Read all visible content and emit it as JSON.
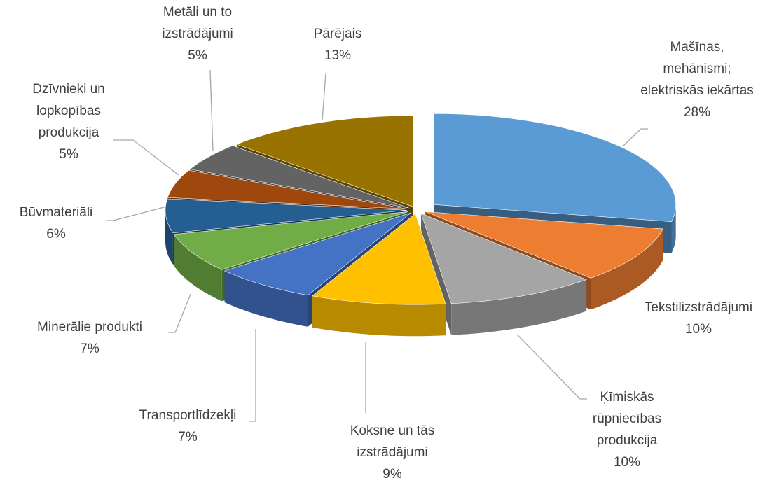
{
  "chart_data": {
    "type": "pie",
    "categories": [
      "Mašīnas,\nmehānismi;\nelektriskās iekārtas",
      "Tekstilizstrādājumi",
      "Ķīmiskās\nrūpniecības\nprodukcija",
      "Koksne un tās\nizstrādājumi",
      "Transportlīdzekļi",
      "Minerālie produkti",
      "Būvmateriāli",
      "Dzīvnieki un\nlopkopības\nprodukcija",
      "Metāli un to\nizstrādājumi",
      "Pārējais"
    ],
    "values": [
      28,
      10,
      10,
      9,
      7,
      7,
      6,
      5,
      5,
      13
    ],
    "value_labels": [
      "28%",
      "10%",
      "10%",
      "9%",
      "7%",
      "7%",
      "6%",
      "5%",
      "5%",
      "13%"
    ],
    "colors": [
      "#5b9bd5",
      "#ed7d31",
      "#a5a5a5",
      "#ffc000",
      "#4472c4",
      "#70ad47",
      "#255e91",
      "#9e480e",
      "#636363",
      "#997300"
    ]
  }
}
